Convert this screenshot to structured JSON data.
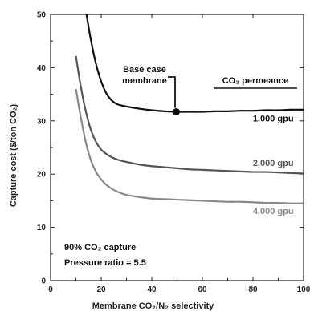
{
  "chart_data": {
    "type": "line",
    "xlabel": "Membrane CO₂/N₂ selectivity",
    "ylabel": "Capture cost ($/ton CO₂)",
    "xlim": [
      0,
      100
    ],
    "ylim": [
      0,
      50
    ],
    "x_ticks": [
      "0",
      "20",
      "40",
      "60",
      "80",
      "100"
    ],
    "y_ticks": [
      "0",
      "10",
      "20",
      "30",
      "40",
      "50"
    ],
    "legend_title": "CO₂ permeance",
    "series": [
      {
        "name": "1,000 gpu",
        "color": "#111111",
        "x": [
          14,
          16,
          18,
          20,
          22,
          24,
          26,
          28,
          30,
          35,
          40,
          45,
          50,
          55,
          60,
          65,
          70,
          75,
          80,
          85,
          90,
          95,
          100
        ],
        "y": [
          50.5,
          45.0,
          40.6,
          37.4,
          35.2,
          33.9,
          33.2,
          32.9,
          32.7,
          32.3,
          32.0,
          31.8,
          31.7,
          31.7,
          31.7,
          31.8,
          31.8,
          31.9,
          31.9,
          32.0,
          32.0,
          32.1,
          32.1
        ]
      },
      {
        "name": "2,000 gpu",
        "color": "#555555",
        "x": [
          10,
          12,
          14,
          16,
          18,
          20,
          22,
          24,
          26,
          28,
          30,
          35,
          40,
          45,
          50,
          55,
          60,
          65,
          70,
          75,
          80,
          85,
          90,
          95,
          100
        ],
        "y": [
          42.2,
          36.3,
          31.6,
          28.2,
          26.0,
          24.6,
          23.8,
          23.2,
          22.8,
          22.5,
          22.3,
          21.8,
          21.5,
          21.3,
          21.1,
          20.9,
          20.8,
          20.7,
          20.6,
          20.5,
          20.4,
          20.4,
          20.3,
          20.2,
          20.1
        ]
      },
      {
        "name": "4,000 gpu",
        "color": "#888888",
        "x": [
          10,
          12,
          14,
          16,
          18,
          20,
          22,
          24,
          26,
          28,
          30,
          35,
          40,
          45,
          50,
          55,
          60,
          65,
          70,
          75,
          80,
          85,
          90,
          95,
          100
        ],
        "y": [
          36.0,
          30.5,
          25.8,
          22.5,
          20.4,
          19.0,
          18.0,
          17.3,
          16.8,
          16.4,
          16.1,
          15.7,
          15.4,
          15.3,
          15.2,
          15.1,
          15.0,
          14.9,
          14.8,
          14.8,
          14.7,
          14.6,
          14.6,
          14.5,
          14.5
        ]
      }
    ],
    "annotations": {
      "base_case": {
        "text_lines": [
          "Base case",
          "membrane"
        ],
        "point": {
          "x": 50,
          "y": 31.7
        }
      },
      "notes": [
        "90% CO₂ capture",
        "Pressure ratio = 5.5"
      ]
    },
    "grid": false
  }
}
